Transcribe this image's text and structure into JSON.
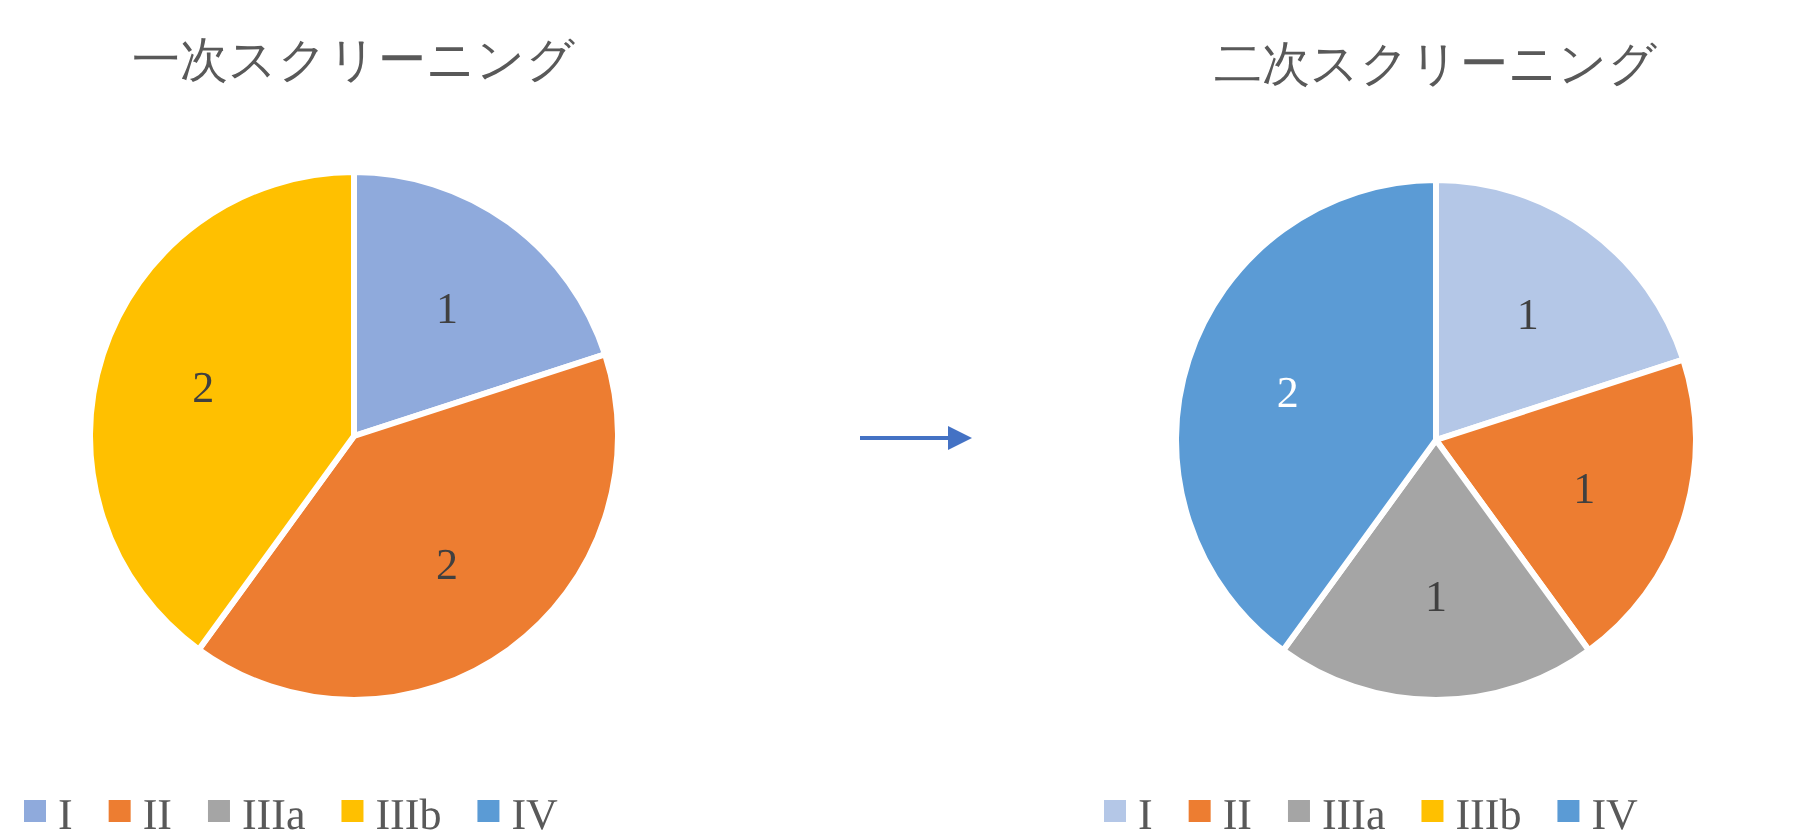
{
  "chart_data": [
    {
      "type": "pie",
      "title": "一次スクリーニング",
      "categories": [
        "I",
        "II",
        "IIIa",
        "IIIb",
        "IV"
      ],
      "values": [
        1,
        2,
        0,
        2,
        0
      ],
      "colors": [
        "#8faadc",
        "#ed7d31",
        "#a5a5a5",
        "#ffc000",
        "#5b9bd5"
      ],
      "data_labels": true,
      "legend": "bottom"
    },
    {
      "type": "pie",
      "title": "二次スクリーニング",
      "categories": [
        "I",
        "II",
        "IIIa",
        "IIIb",
        "IV"
      ],
      "values": [
        1,
        1,
        1,
        0,
        2
      ],
      "colors": [
        "#b4c7e7",
        "#ed7d31",
        "#a5a5a5",
        "#ffc000",
        "#5b9bd5"
      ],
      "data_labels": true,
      "legend": "bottom"
    }
  ]
}
